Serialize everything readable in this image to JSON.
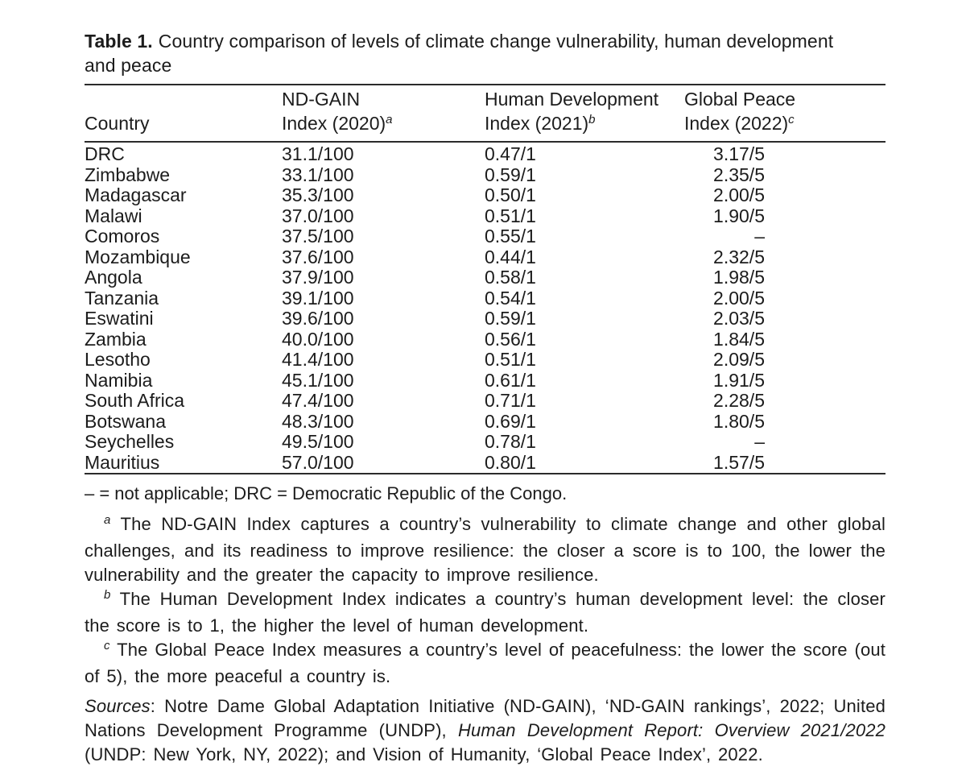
{
  "colors": {
    "text": "#1c1c1c",
    "rule": "#2b2b2b",
    "background": "#ffffff"
  },
  "title": {
    "label": "Table 1.",
    "text": "Country comparison of levels of climate change vulnerability, human development and peace"
  },
  "table": {
    "columns": [
      {
        "line1": "",
        "line2": "Country",
        "sup": ""
      },
      {
        "line1": "ND-GAIN",
        "line2": "Index (2020)",
        "sup": "a"
      },
      {
        "line1": "Human Development",
        "line2": "Index (2021)",
        "sup": "b"
      },
      {
        "line1": "Global Peace",
        "line2": "Index (2022)",
        "sup": "c"
      }
    ],
    "rows": [
      [
        "DRC",
        "31.1/100",
        "0.47/1",
        "3.17/5"
      ],
      [
        "Zimbabwe",
        "33.1/100",
        "0.59/1",
        "2.35/5"
      ],
      [
        "Madagascar",
        "35.3/100",
        "0.50/1",
        "2.00/5"
      ],
      [
        "Malawi",
        "37.0/100",
        "0.51/1",
        "1.90/5"
      ],
      [
        "Comoros",
        "37.5/100",
        "0.55/1",
        "–"
      ],
      [
        "Mozambique",
        "37.6/100",
        "0.44/1",
        "2.32/5"
      ],
      [
        "Angola",
        "37.9/100",
        "0.58/1",
        "1.98/5"
      ],
      [
        "Tanzania",
        "39.1/100",
        "0.54/1",
        "2.00/5"
      ],
      [
        "Eswatini",
        "39.6/100",
        "0.59/1",
        "2.03/5"
      ],
      [
        "Zambia",
        "40.0/100",
        "0.56/1",
        "1.84/5"
      ],
      [
        "Lesotho",
        "41.4/100",
        "0.51/1",
        "2.09/5"
      ],
      [
        "Namibia",
        "45.1/100",
        "0.61/1",
        "1.91/5"
      ],
      [
        "South Africa",
        "47.4/100",
        "0.71/1",
        "2.28/5"
      ],
      [
        "Botswana",
        "48.3/100",
        "0.69/1",
        "1.80/5"
      ],
      [
        "Seychelles",
        "49.5/100",
        "0.78/1",
        "–"
      ],
      [
        "Mauritius",
        "57.0/100",
        "0.80/1",
        "1.57/5"
      ]
    ]
  },
  "abbrev_note": "– = not applicable; DRC = Democratic Republic of the Congo.",
  "footnotes": [
    {
      "marker": "a",
      "text": "The ND-GAIN Index captures a country’s vulnerability to climate change and other global challenges, and its readiness to improve resilience: the closer a score is to 100, the lower the vulnerability and the greater the capacity to improve resilience."
    },
    {
      "marker": "b",
      "text": "The Human Development Index indicates a country’s human development level: the closer the score is to 1, the higher the level of human development."
    },
    {
      "marker": "c",
      "text": "The Global Peace Index measures a country’s level of peacefulness: the lower the score (out of 5), the more peaceful a country is."
    }
  ],
  "sources": {
    "parts": [
      {
        "text": "Sources",
        "italic": true
      },
      {
        "text": ": Notre Dame Global Adaptation Initiative (ND-GAIN), ‘ND-GAIN rankings’, 2022; United Nations Development Programme (UNDP), ",
        "italic": false
      },
      {
        "text": "Human Development Report: Overview 2021/2022",
        "italic": true
      },
      {
        "text": " (UNDP: New York, NY, 2022); and Vision of Humanity, ‘Global Peace Index’, 2022.",
        "italic": false
      }
    ]
  }
}
